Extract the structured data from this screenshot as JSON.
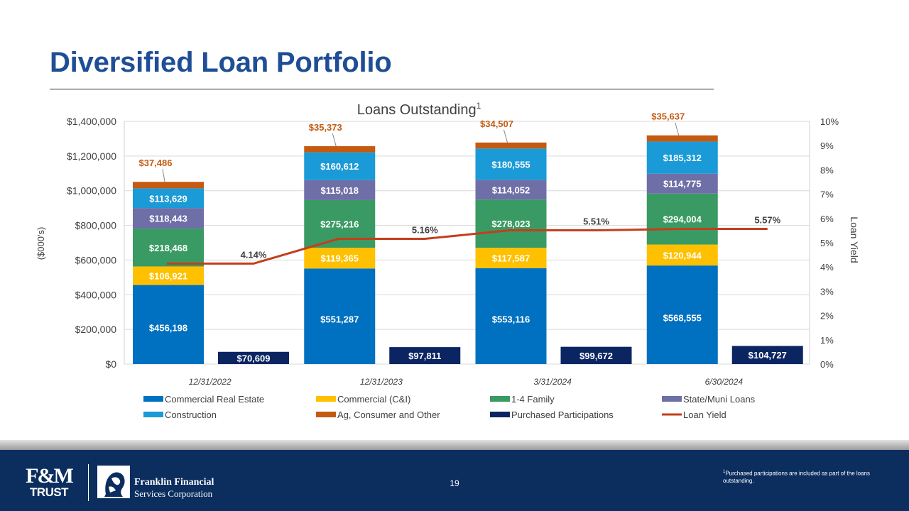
{
  "slide": {
    "title": "Diversified Loan Portfolio",
    "page_number": "19",
    "footnote_mark": "1",
    "footnote": "Purchased participations are included as part of the loans outstanding."
  },
  "footer": {
    "logo1_line1": "F&M",
    "logo1_line2": "TRUST",
    "logo2_line1": "Franklin Financial",
    "logo2_line2": "Services Corporation"
  },
  "chart_data": {
    "type": "bar",
    "title": "Loans Outstanding",
    "title_superscript": "1",
    "ylabel": "($000's)",
    "y2label": "Loan Yield",
    "ylim": [
      0,
      1400000
    ],
    "y2lim": [
      0,
      10
    ],
    "y_ticks": [
      "$0",
      "$200,000",
      "$400,000",
      "$600,000",
      "$800,000",
      "$1,000,000",
      "$1,200,000",
      "$1,400,000"
    ],
    "y2_ticks": [
      "0%",
      "1%",
      "2%",
      "3%",
      "4%",
      "5%",
      "6%",
      "7%",
      "8%",
      "9%",
      "10%"
    ],
    "categories": [
      "12/31/2022",
      "12/31/2023",
      "3/31/2024",
      "6/30/2024"
    ],
    "stacked_series": [
      {
        "name": "Commercial Real Estate",
        "color": "#0070c0",
        "values": [
          456198,
          551287,
          553116,
          568555
        ],
        "labels": [
          "$456,198",
          "$551,287",
          "$553,116",
          "$568,555"
        ]
      },
      {
        "name": "Commercial (C&I)",
        "color": "#ffc000",
        "values": [
          106921,
          119365,
          117587,
          120944
        ],
        "labels": [
          "$106,921",
          "$119,365",
          "$117,587",
          "$120,944"
        ]
      },
      {
        "name": "1-4 Family",
        "color": "#3a9a63",
        "values": [
          218468,
          275216,
          278023,
          294004
        ],
        "labels": [
          "$218,468",
          "$275,216",
          "$278,023",
          "$294,004"
        ]
      },
      {
        "name": "State/Muni Loans",
        "color": "#6f6fa8",
        "values": [
          118443,
          115018,
          114052,
          114775
        ],
        "labels": [
          "$118,443",
          "$115,018",
          "$114,052",
          "$114,775"
        ]
      },
      {
        "name": "Construction",
        "color": "#1a9ad6",
        "values": [
          113629,
          160612,
          180555,
          185312
        ],
        "labels": [
          "$113,629",
          "$160,612",
          "$180,555",
          "$185,312"
        ]
      },
      {
        "name": "Ag, Consumer and Other",
        "color": "#c55a11",
        "values": [
          37486,
          35373,
          34507,
          35637
        ],
        "labels": [
          "$37,486",
          "$35,373",
          "$34,507",
          "$35,637"
        ]
      }
    ],
    "participations": {
      "name": "Purchased Participations",
      "color": "#0b2563",
      "values": [
        70609,
        97811,
        99672,
        104727
      ],
      "labels": [
        "$70,609",
        "$97,811",
        "$99,672",
        "$104,727"
      ]
    },
    "line": {
      "name": "Loan Yield",
      "color": "#c43e1c",
      "values": [
        4.14,
        5.16,
        5.51,
        5.57
      ],
      "labels": [
        "4.14%",
        "5.16%",
        "5.51%",
        "5.57%"
      ]
    },
    "legend_position": "bottom",
    "grid": true
  }
}
